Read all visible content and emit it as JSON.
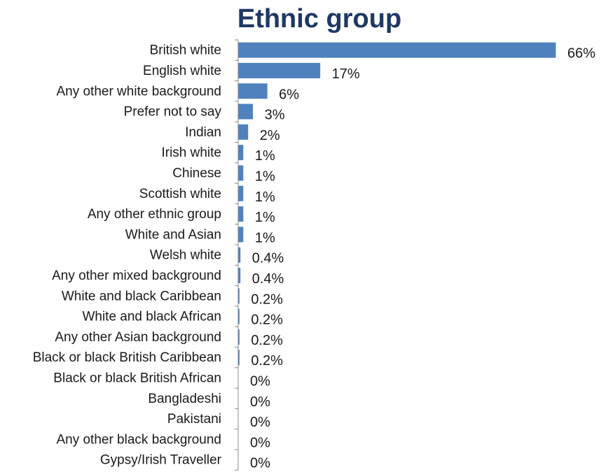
{
  "chart_data": {
    "type": "bar",
    "orientation": "horizontal",
    "title": "Ethnic group",
    "xlabel": "",
    "ylabel": "",
    "grid": false,
    "bar_color": "#4f81bd",
    "categories": [
      "British white",
      "English white",
      "Any other white background",
      "Prefer not to say",
      "Indian",
      "Irish white",
      "Chinese",
      "Scottish white",
      "Any other ethnic group",
      "White and Asian",
      "Welsh white",
      "Any other mixed background",
      "White and black Caribbean",
      "White and black African",
      "Any other Asian background",
      "Black or black British Caribbean",
      "Black or black British African",
      "Bangladeshi",
      "Pakistani",
      "Any other black background",
      "Gypsy/Irish Traveller"
    ],
    "values": [
      66,
      17,
      6,
      3,
      2,
      1,
      1,
      1,
      1,
      1,
      0.4,
      0.4,
      0.2,
      0.2,
      0.2,
      0.2,
      0,
      0,
      0,
      0,
      0
    ],
    "value_labels": [
      "66%",
      "17%",
      "6%",
      "3%",
      "2%",
      "1%",
      "1%",
      "1%",
      "1%",
      "1%",
      "0.4%",
      "0.4%",
      "0.2%",
      "0.2%",
      "0.2%",
      "0.2%",
      "0%",
      "0%",
      "0%",
      "0%",
      "0%"
    ],
    "xlim": [
      0,
      66
    ]
  }
}
